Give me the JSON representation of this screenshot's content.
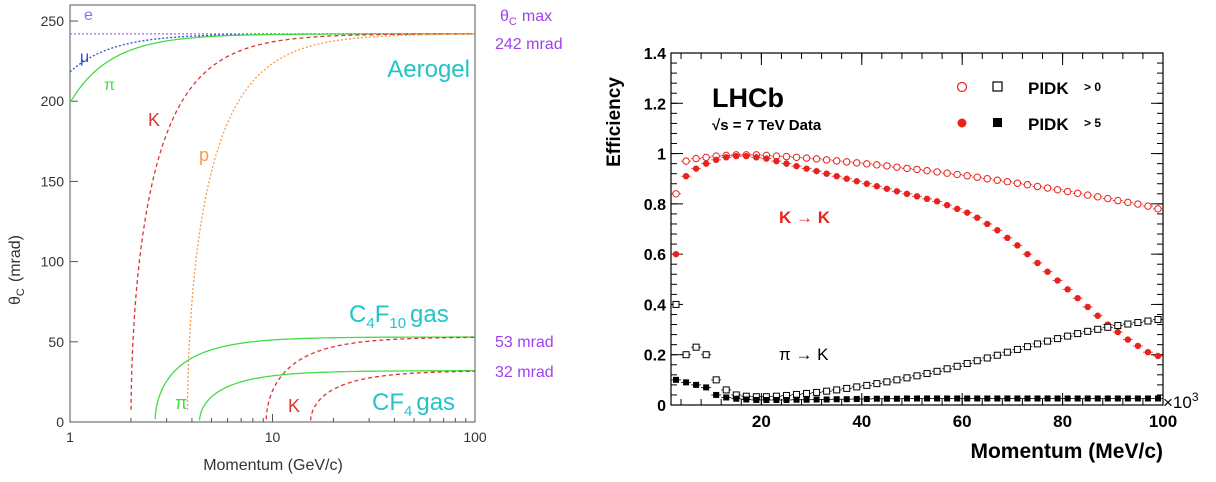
{
  "chart_data": [
    {
      "type": "line",
      "xlabel": "Momentum  (GeV/c)",
      "ylabel": "θ",
      "ylabel_sub": "C",
      "ylabel_unit": "(mrad)",
      "xscale": "log",
      "xlim": [
        1,
        100
      ],
      "ylim": [
        0,
        260
      ],
      "xticks": [
        {
          "value": 1,
          "label": "1"
        },
        {
          "value": 10,
          "label": "10"
        },
        {
          "value": 100,
          "label": "100"
        }
      ],
      "yticks": [
        0,
        50,
        100,
        150,
        200,
        250
      ],
      "grid": false,
      "colors": {
        "aerogel_label": "#22c4c9",
        "max_label": "#a040f0",
        "e": "#9966ff",
        "mu": "#2a4fd4",
        "pi": "#44dd44",
        "K": "#dd3333",
        "p": "#ff9944"
      },
      "annotations": {
        "theta_max_symbol": "θ",
        "theta_max_sub": "C",
        "theta_max_word": "max",
        "aerogel_max": "242 mrad",
        "c4f10_max": "53 mrad",
        "cf4_max": "32 mrad",
        "aerogel": "Aerogel",
        "c4f10_c": "C",
        "c4f10_4": "4",
        "c4f10_f": "F",
        "c4f10_10": "10",
        "c4f10_gas": "gas",
        "cf4_cf": "CF",
        "cf4_4": "4",
        "cf4_gas": "gas"
      },
      "radiators": [
        {
          "name": "Aerogel",
          "theta_max": 242,
          "series": [
            {
              "name": "e",
              "mass": 0.000511,
              "style": "dotted"
            },
            {
              "name": "μ",
              "mass": 0.1057,
              "style": "dotted"
            },
            {
              "name": "π",
              "mass": 0.1396,
              "style": "solid"
            },
            {
              "name": "K",
              "mass": 0.4937,
              "style": "dashed"
            },
            {
              "name": "p",
              "mass": 0.9383,
              "style": "dotted"
            }
          ]
        },
        {
          "name": "C4F10",
          "theta_max": 53,
          "series": [
            {
              "name": "π",
              "mass": 0.1396,
              "style": "solid"
            },
            {
              "name": "K",
              "mass": 0.4937,
              "style": "dashed"
            }
          ]
        },
        {
          "name": "CF4",
          "theta_max": 32,
          "series": [
            {
              "name": "π",
              "mass": 0.1396,
              "style": "solid"
            },
            {
              "name": "K",
              "mass": 0.4937,
              "style": "dashed"
            }
          ]
        }
      ]
    },
    {
      "type": "scatter",
      "xlabel": "Momentum (MeV/c)",
      "ylabel": "Efficiency",
      "xlim": [
        2000,
        100000
      ],
      "ylim": [
        0,
        1.4
      ],
      "xticks": [
        {
          "value": 20000,
          "label": "20"
        },
        {
          "value": 40000,
          "label": "40"
        },
        {
          "value": 60000,
          "label": "60"
        },
        {
          "value": 80000,
          "label": "80"
        },
        {
          "value": 100000,
          "label": "100"
        }
      ],
      "yticks": [
        {
          "value": 0,
          "label": "0"
        },
        {
          "value": 0.2,
          "label": "0.2"
        },
        {
          "value": 0.4,
          "label": "0.4"
        },
        {
          "value": 0.6,
          "label": "0.6"
        },
        {
          "value": 0.8,
          "label": "0.8"
        },
        {
          "value": 1,
          "label": "1"
        },
        {
          "value": 1.2,
          "label": "1.2"
        },
        {
          "value": 1.4,
          "label": "1.4"
        }
      ],
      "x_multiplier": "×10",
      "x_multiplier_exp": "3",
      "grid": false,
      "colors": {
        "kaon": "#e8231f",
        "pion": "#000000"
      },
      "annotations": {
        "experiment": "LHCb",
        "sqrt_s": "√s = 7 TeV Data",
        "k_to_k": "K → K",
        "pi_to_k": "π → K",
        "legend_cut0_label": "PIDK",
        "legend_cut0_cut": "> 0",
        "legend_cut5_label": "PIDK",
        "legend_cut5_cut": "> 5"
      },
      "legend_placement": "top-right",
      "x": [
        3000,
        5000,
        7000,
        9000,
        11000,
        13000,
        15000,
        17000,
        19000,
        21000,
        23000,
        25000,
        27000,
        29000,
        31000,
        33000,
        35000,
        37000,
        39000,
        41000,
        43000,
        45000,
        47000,
        49000,
        51000,
        53000,
        55000,
        57000,
        59000,
        61000,
        63000,
        65000,
        67000,
        69000,
        71000,
        73000,
        75000,
        77000,
        79000,
        81000,
        83000,
        85000,
        87000,
        89000,
        91000,
        93000,
        95000,
        97000,
        99000
      ],
      "series": [
        {
          "name": "K → K, PIDK > 0",
          "marker": "open-circle",
          "values": [
            0.84,
            0.97,
            0.98,
            0.985,
            0.99,
            0.993,
            0.995,
            0.995,
            0.995,
            0.993,
            0.99,
            0.988,
            0.985,
            0.982,
            0.979,
            0.975,
            0.971,
            0.967,
            0.963,
            0.959,
            0.955,
            0.951,
            0.946,
            0.941,
            0.937,
            0.932,
            0.927,
            0.922,
            0.917,
            0.912,
            0.906,
            0.9,
            0.894,
            0.888,
            0.882,
            0.876,
            0.869,
            0.863,
            0.856,
            0.849,
            0.842,
            0.835,
            0.828,
            0.821,
            0.813,
            0.806,
            0.799,
            0.791,
            0.78
          ]
        },
        {
          "name": "K → K, PIDK > 5",
          "marker": "filled-circle",
          "values": [
            0.6,
            0.91,
            0.94,
            0.96,
            0.975,
            0.985,
            0.99,
            0.99,
            0.985,
            0.98,
            0.97,
            0.96,
            0.95,
            0.94,
            0.93,
            0.92,
            0.91,
            0.9,
            0.89,
            0.88,
            0.87,
            0.86,
            0.85,
            0.84,
            0.83,
            0.82,
            0.81,
            0.795,
            0.78,
            0.765,
            0.745,
            0.72,
            0.695,
            0.665,
            0.635,
            0.6,
            0.565,
            0.53,
            0.495,
            0.46,
            0.425,
            0.39,
            0.355,
            0.32,
            0.29,
            0.26,
            0.235,
            0.21,
            0.195
          ]
        },
        {
          "name": "π → K, PIDK > 0",
          "marker": "open-square",
          "values": [
            0.4,
            0.2,
            0.23,
            0.2,
            0.1,
            0.06,
            0.04,
            0.035,
            0.033,
            0.033,
            0.035,
            0.038,
            0.042,
            0.046,
            0.05,
            0.055,
            0.06,
            0.066,
            0.072,
            0.078,
            0.085,
            0.092,
            0.1,
            0.108,
            0.116,
            0.125,
            0.134,
            0.144,
            0.154,
            0.165,
            0.176,
            0.187,
            0.198,
            0.21,
            0.221,
            0.232,
            0.243,
            0.254,
            0.264,
            0.274,
            0.284,
            0.293,
            0.301,
            0.309,
            0.316,
            0.322,
            0.328,
            0.334,
            0.34
          ]
        },
        {
          "name": "π → K, PIDK > 5",
          "marker": "filled-square",
          "values": [
            0.1,
            0.09,
            0.08,
            0.07,
            0.04,
            0.03,
            0.025,
            0.022,
            0.02,
            0.02,
            0.02,
            0.02,
            0.021,
            0.021,
            0.022,
            0.022,
            0.023,
            0.023,
            0.024,
            0.024,
            0.025,
            0.025,
            0.025,
            0.026,
            0.026,
            0.026,
            0.026,
            0.026,
            0.026,
            0.026,
            0.026,
            0.026,
            0.026,
            0.026,
            0.026,
            0.026,
            0.026,
            0.026,
            0.026,
            0.026,
            0.026,
            0.026,
            0.026,
            0.026,
            0.026,
            0.026,
            0.026,
            0.026,
            0.026
          ]
        }
      ]
    }
  ]
}
